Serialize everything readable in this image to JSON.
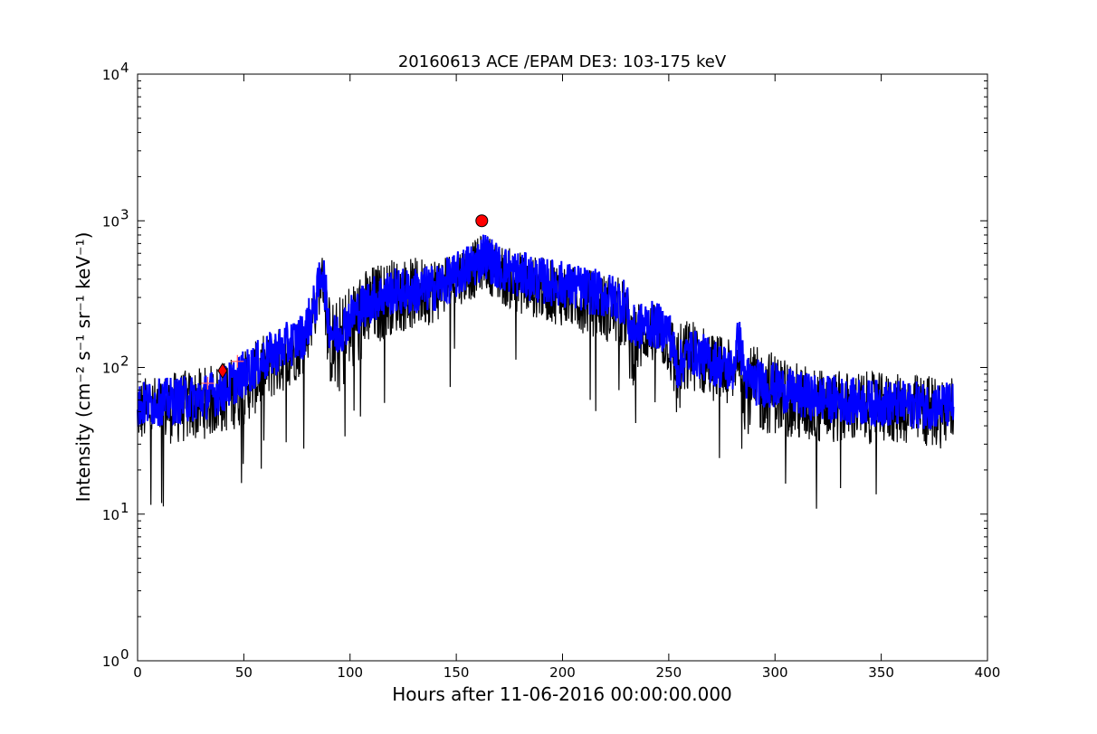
{
  "chart_data": {
    "type": "line",
    "title": "20160613 ACE /EPAM DE3: 103-175 keV",
    "xlabel": "Hours after 11-06-2016 00:00:00.000",
    "ylabel": "Intensity (cm⁻² s⁻¹ sr⁻¹ keV⁻¹)",
    "xlim": [
      0,
      400
    ],
    "ylim": [
      1,
      10000
    ],
    "yscale": "log",
    "grid": false,
    "x_ticks": [
      "0",
      "50",
      "100",
      "150",
      "200",
      "250",
      "300",
      "350",
      "400"
    ],
    "y_ticks": [
      {
        "base": "10",
        "exp": "0"
      },
      {
        "base": "10",
        "exp": "1"
      },
      {
        "base": "10",
        "exp": "2"
      },
      {
        "base": "10",
        "exp": "3"
      },
      {
        "base": "10",
        "exp": "4"
      }
    ],
    "colors": {
      "envelope": "#000000",
      "series": "#0000ff",
      "marker_fill": "#ff0000",
      "cross": "#ff6666"
    },
    "series": [
      {
        "x": [
          0,
          10,
          20,
          30,
          40,
          50,
          60,
          70,
          78,
          84,
          87,
          90,
          93,
          100,
          110,
          120,
          130,
          140,
          150,
          155,
          160,
          163,
          170,
          180,
          190,
          200,
          210,
          220,
          230,
          232,
          240,
          250,
          254,
          260,
          270,
          280,
          283,
          286,
          290,
          300,
          310,
          320,
          330,
          340,
          350,
          360,
          370,
          384
        ],
        "y": [
          55,
          58,
          60,
          62,
          70,
          90,
          115,
          140,
          165,
          280,
          500,
          200,
          160,
          220,
          290,
          330,
          330,
          350,
          420,
          480,
          520,
          600,
          480,
          430,
          390,
          370,
          340,
          310,
          280,
          180,
          200,
          180,
          100,
          130,
          110,
          95,
          160,
          85,
          80,
          75,
          65,
          62,
          60,
          58,
          57,
          56,
          55,
          55
        ],
        "upper": [
          85,
          90,
          95,
          100,
          110,
          130,
          170,
          200,
          230,
          380,
          600,
          320,
          280,
          400,
          500,
          560,
          560,
          580,
          650,
          700,
          760,
          850,
          700,
          620,
          560,
          520,
          480,
          440,
          400,
          300,
          280,
          250,
          200,
          220,
          180,
          150,
          220,
          140,
          140,
          130,
          110,
          100,
          95,
          95,
          92,
          90,
          90,
          90
        ],
        "lower": [
          30,
          30,
          30,
          32,
          35,
          40,
          55,
          70,
          90,
          170,
          300,
          80,
          60,
          80,
          130,
          170,
          180,
          200,
          260,
          280,
          300,
          350,
          270,
          230,
          210,
          190,
          170,
          150,
          130,
          70,
          110,
          90,
          40,
          70,
          60,
          50,
          90,
          35,
          35,
          35,
          30,
          30,
          30,
          30,
          30,
          30,
          28,
          28
        ]
      }
    ],
    "markers": [
      {
        "shape": "circle",
        "x": 162,
        "y": 1000
      },
      {
        "shape": "diamond",
        "x": 40,
        "y": 95
      },
      {
        "shape": "cross",
        "x": 33,
        "y": 78
      },
      {
        "shape": "cross",
        "x": 47,
        "y": 110
      }
    ]
  }
}
